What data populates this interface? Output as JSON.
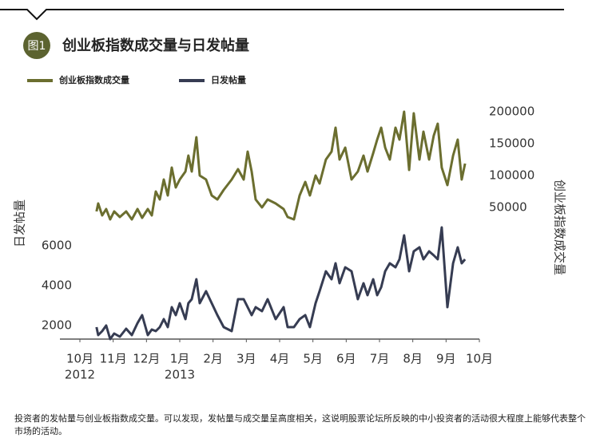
{
  "chart_data": {
    "type": "line",
    "badge": "图1",
    "title": "创业板指数成交量与日发帖量",
    "ylabel": "日发帖量",
    "y2label": "创业板指数成交量",
    "note": "投资者的发帖量与创业板指数成交量。可以发现，发帖量与成交量呈高度相关，这说明股票论坛所反映的中小投资者的活动很大程度上能够代表整个市场的活动。",
    "x": [
      10.5,
      10.55,
      10.67,
      10.79,
      10.91,
      11.03,
      11.2,
      11.39,
      11.56,
      11.73,
      11.87,
      12.04,
      12.16,
      12.28,
      12.4,
      12.52,
      12.64,
      12.76,
      12.88,
      13.0,
      13.17,
      13.26,
      13.36,
      13.5,
      13.6,
      13.79,
      13.96,
      14.13,
      14.32,
      14.56,
      14.75,
      14.92,
      15.04,
      15.16,
      15.28,
      15.47,
      15.64,
      15.88,
      16.12,
      16.24,
      16.43,
      16.6,
      16.77,
      16.91,
      17.08,
      17.2,
      17.39,
      17.56,
      17.68,
      17.8,
      17.97,
      18.16,
      18.35,
      18.52,
      18.64,
      18.81,
      18.93,
      19.05,
      19.17,
      19.31,
      19.48,
      19.6,
      19.74,
      19.89,
      20.03,
      20.2,
      20.32,
      20.49,
      20.63,
      20.75,
      20.87,
      21.04,
      21.21,
      21.35,
      21.47,
      21.57
    ],
    "series": [
      {
        "name": "创业板指数成交量",
        "color": "#6b6e2f",
        "axis": "y2",
        "values": [
          43750,
          56250,
          37500,
          47500,
          31250,
          43750,
          35000,
          43750,
          31250,
          47500,
          33750,
          47500,
          37500,
          75000,
          62500,
          93750,
          68750,
          112500,
          81250,
          93750,
          106250,
          131250,
          106250,
          160000,
          100000,
          93750,
          68750,
          62500,
          77500,
          93750,
          110000,
          93750,
          137500,
          106250,
          62500,
          50000,
          62500,
          56250,
          47500,
          35000,
          31250,
          68750,
          90000,
          68750,
          100000,
          87500,
          125000,
          137500,
          175000,
          125000,
          143750,
          93750,
          106250,
          131250,
          106250,
          135000,
          156250,
          175000,
          143750,
          125000,
          175000,
          156250,
          200000,
          108750,
          197500,
          125000,
          168750,
          125000,
          162500,
          181250,
          112500,
          85000,
          131250,
          156250,
          93750,
          118750
        ]
      },
      {
        "name": "日发帖量",
        "color": "#363c52",
        "values": [
          1920,
          1520,
          1720,
          2000,
          1320,
          1600,
          1440,
          1840,
          1520,
          2120,
          2520,
          1520,
          1800,
          1720,
          1920,
          2320,
          1920,
          2920,
          2520,
          3120,
          2320,
          3120,
          3320,
          4320,
          3120,
          3720,
          3120,
          2520,
          1920,
          1720,
          3320,
          3320,
          2920,
          2520,
          2920,
          2720,
          3320,
          2320,
          2920,
          1920,
          1920,
          2320,
          2520,
          1920,
          3120,
          3720,
          4720,
          4320,
          5120,
          4120,
          4920,
          4720,
          3320,
          4120,
          3520,
          4320,
          3520,
          3920,
          4720,
          5120,
          4920,
          5320,
          6520,
          4720,
          5720,
          5920,
          5320,
          5720,
          5520,
          5320,
          6920,
          2920,
          5120,
          5920,
          5120,
          5320
        ]
      }
    ],
    "xlim": [
      10,
      22
    ],
    "xticks": [
      {
        "value": 10,
        "label": "10月"
      },
      {
        "value": 11,
        "label": "11月"
      },
      {
        "value": 12,
        "label": "12月"
      },
      {
        "value": 13,
        "label": "1月"
      },
      {
        "value": 14,
        "label": "2月"
      },
      {
        "value": 15,
        "label": "3月"
      },
      {
        "value": 16,
        "label": "4月"
      },
      {
        "value": 17,
        "label": "5月"
      },
      {
        "value": 18,
        "label": "6月"
      },
      {
        "value": 19,
        "label": "7月"
      },
      {
        "value": 20,
        "label": "8月"
      },
      {
        "value": 21,
        "label": "9月"
      },
      {
        "value": 22,
        "label": "10月"
      }
    ],
    "xticks_year": [
      {
        "value": 10,
        "label": "2012"
      },
      {
        "value": 13,
        "label": "2013"
      }
    ],
    "ylim": [
      1320,
      13120
    ],
    "yticks": [
      2000,
      4000,
      6000
    ],
    "y2lim": [
      -156250,
      212500
    ],
    "y2ticks": [
      50000,
      100000,
      150000,
      200000
    ],
    "grid": false
  }
}
